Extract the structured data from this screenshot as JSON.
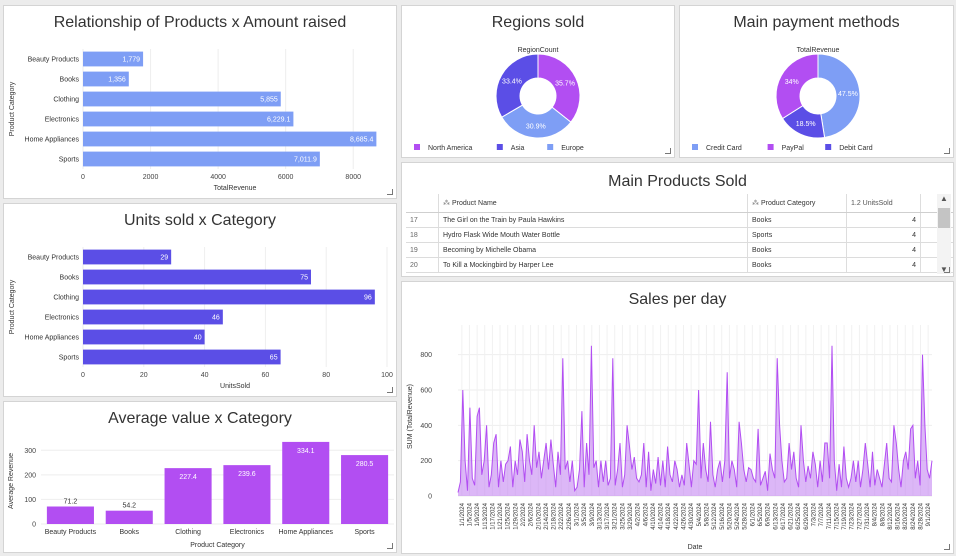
{
  "colors": {
    "blue": "#7e9ef5",
    "indigo": "#5b4ee6",
    "purple": "#b24ef2",
    "area": "#c07cf0",
    "europe": "#7e9ef5",
    "asia": "#5b4ee6",
    "northamerica": "#b24ef2"
  },
  "panels": {
    "products_amount": {
      "title": "Relationship of Products x Amount raised"
    },
    "units_category": {
      "title": "Units sold x Category"
    },
    "avg_category": {
      "title": "Average value x Category"
    },
    "regions": {
      "title": "Regions sold"
    },
    "payments": {
      "title": "Main payment methods"
    },
    "products_sold": {
      "title": "Main Products Sold"
    },
    "sales_day": {
      "title": "Sales per day"
    }
  },
  "table": {
    "headers": [
      "Product Name",
      "Product Category",
      "1.2 UnitsSold"
    ],
    "header_icons": [
      "hierarchy-icon",
      "hierarchy-icon",
      "numeric-icon"
    ],
    "rows": [
      {
        "idx": "17",
        "name": "The Girl on the Train by Paula Hawkins",
        "category": "Books",
        "units": "4"
      },
      {
        "idx": "18",
        "name": "Hydro Flask Wide Mouth Water Bottle",
        "category": "Sports",
        "units": "4"
      },
      {
        "idx": "19",
        "name": "Becoming by Michelle Obama",
        "category": "Books",
        "units": "4"
      },
      {
        "idx": "20",
        "name": "To Kill a Mockingbird by Harper Lee",
        "category": "Books",
        "units": "4"
      }
    ]
  },
  "chart_data": [
    {
      "id": "products_amount",
      "type": "bar",
      "orientation": "horizontal",
      "categories": [
        "Beauty Products",
        "Books",
        "Clothing",
        "Electronics",
        "Home Appliances",
        "Sports"
      ],
      "values": [
        1779,
        1356,
        5855,
        6229.1,
        8685.4,
        7011.9
      ],
      "data_labels": [
        "1,779",
        "1,356",
        "5,855",
        "6,229.1",
        "8,685.4",
        "7,011.9"
      ],
      "xlabel": "TotalRevenue",
      "ylabel": "Product Category",
      "xlim": [
        0,
        9000
      ],
      "xticks": [
        0,
        2000,
        4000,
        6000,
        8000
      ],
      "color": "#7e9ef5"
    },
    {
      "id": "units_category",
      "type": "bar",
      "orientation": "horizontal",
      "categories": [
        "Beauty Products",
        "Books",
        "Clothing",
        "Electronics",
        "Home Appliances",
        "Sports"
      ],
      "values": [
        29,
        75,
        96,
        46,
        40,
        65
      ],
      "data_labels": [
        "29",
        "75",
        "96",
        "46",
        "40",
        "65"
      ],
      "xlabel": "UnitsSold",
      "ylabel": "Product Category",
      "xlim": [
        0,
        100
      ],
      "xticks": [
        0,
        20,
        40,
        60,
        80,
        100
      ],
      "color": "#5b4ee6"
    },
    {
      "id": "avg_category",
      "type": "bar",
      "orientation": "vertical",
      "categories": [
        "Beauty Products",
        "Books",
        "Clothing",
        "Electronics",
        "Home Appliances",
        "Sports"
      ],
      "values": [
        71.2,
        54.2,
        227.4,
        239.6,
        334.1,
        280.5
      ],
      "data_labels": [
        "71.2",
        "54.2",
        "227.4",
        "239.6",
        "334.1",
        "280.5"
      ],
      "xlabel": "Product Category",
      "ylabel": "Average Revenue",
      "ylim": [
        0,
        350
      ],
      "yticks": [
        0,
        100,
        200,
        300
      ],
      "color": "#b24ef2"
    },
    {
      "id": "regions",
      "type": "pie",
      "donut": true,
      "subtitle": "RegionCount",
      "labels": [
        "North America",
        "Europe",
        "Asia"
      ],
      "values": [
        35.7,
        30.9,
        33.4
      ],
      "data_labels": [
        "35.7%",
        "30.9%",
        "33.4%"
      ],
      "colors": [
        "#b24ef2",
        "#7e9ef5",
        "#5b4ee6"
      ],
      "legend": [
        "North America",
        "Asia",
        "Europe"
      ],
      "legend_colors": [
        "#b24ef2",
        "#5b4ee6",
        "#7e9ef5"
      ],
      "legend_position": "bottom-left"
    },
    {
      "id": "payments",
      "type": "pie",
      "donut": true,
      "subtitle": "TotalRevenue",
      "labels": [
        "Credit Card",
        "Debit Card",
        "PayPal"
      ],
      "values": [
        47.5,
        18.5,
        34.0
      ],
      "data_labels": [
        "47.5%",
        "18.5%",
        "34%"
      ],
      "colors": [
        "#7e9ef5",
        "#5b4ee6",
        "#b24ef2"
      ],
      "legend": [
        "Credit Card",
        "PayPal",
        "Debit Card"
      ],
      "legend_colors": [
        "#7e9ef5",
        "#b24ef2",
        "#5b4ee6"
      ],
      "legend_position": "bottom-left"
    },
    {
      "id": "sales_day",
      "type": "area",
      "xlabel": "Date",
      "ylabel": "SUM (TotalRevenue)",
      "ylim": [
        0,
        900
      ],
      "yticks": [
        0,
        200,
        400,
        600,
        800
      ],
      "x_tick_labels": [
        "1/1/2024",
        "1/5/2024",
        "1/9/2024",
        "1/13/2024",
        "1/17/2024",
        "1/21/2024",
        "1/25/2024",
        "1/29/2024",
        "2/2/2024",
        "2/6/2024",
        "2/10/2024",
        "2/14/2024",
        "2/18/2024",
        "2/22/2024",
        "2/26/2024",
        "3/1/2024",
        "3/5/2024",
        "3/9/2024",
        "3/13/2024",
        "3/17/2024",
        "3/21/2024",
        "3/25/2024",
        "3/29/2024",
        "4/2/2024",
        "4/6/2024",
        "4/10/2024",
        "4/14/2024",
        "4/18/2024",
        "4/22/2024",
        "4/26/2024",
        "4/30/2024",
        "5/4/2024",
        "5/8/2024",
        "5/12/2024",
        "5/16/2024",
        "5/20/2024",
        "5/24/2024",
        "5/28/2024",
        "6/1/2024",
        "6/5/2024",
        "6/9/2024",
        "6/13/2024",
        "6/17/2024",
        "6/21/2024",
        "6/25/2024",
        "6/29/2024",
        "7/3/2024",
        "7/7/2024",
        "7/11/2024",
        "7/15/2024",
        "7/19/2024",
        "7/23/2024",
        "7/27/2024",
        "7/31/2024",
        "8/4/2024",
        "8/8/2024",
        "8/12/2024",
        "8/16/2024",
        "8/20/2024",
        "8/24/2024",
        "8/28/2024",
        "9/1/2024"
      ],
      "values": [
        20,
        80,
        600,
        200,
        30,
        500,
        100,
        60,
        450,
        500,
        120,
        200,
        400,
        50,
        120,
        300,
        350,
        50,
        200,
        80,
        180,
        200,
        280,
        50,
        200,
        120,
        320,
        250,
        80,
        350,
        200,
        120,
        400,
        160,
        250,
        100,
        200,
        300,
        150,
        320,
        180,
        50,
        250,
        120,
        780,
        150,
        200,
        80,
        200,
        30,
        50,
        150,
        480,
        50,
        300,
        120,
        850,
        160,
        200,
        50,
        200,
        80,
        200,
        60,
        100,
        780,
        60,
        150,
        300,
        50,
        120,
        400,
        280,
        150,
        220,
        100,
        80,
        120,
        300,
        50,
        250,
        30,
        150,
        70,
        220,
        60,
        200,
        50,
        280,
        120,
        80,
        200,
        150,
        50,
        120,
        60,
        300,
        180,
        50,
        200,
        180,
        600,
        100,
        300,
        150,
        80,
        420,
        120,
        50,
        150,
        200,
        80,
        200,
        700,
        100,
        200,
        150,
        50,
        420,
        300,
        150,
        80,
        160,
        150,
        100,
        80,
        380,
        60,
        100,
        140,
        30,
        240,
        150,
        100,
        780,
        400,
        200,
        80,
        100,
        300,
        150,
        250,
        100,
        50,
        400,
        200,
        80,
        170,
        100,
        250,
        180,
        50,
        200,
        80,
        300,
        300,
        100,
        850,
        200,
        30,
        180,
        50,
        280,
        100,
        50,
        100,
        200,
        80,
        200,
        50,
        150,
        300,
        180,
        50,
        250,
        60,
        150,
        100,
        50,
        180,
        300,
        100,
        80,
        400,
        300,
        150,
        50,
        200,
        250,
        150,
        380,
        400,
        100,
        200,
        60,
        800,
        400,
        150,
        100,
        200
      ]
    }
  ]
}
